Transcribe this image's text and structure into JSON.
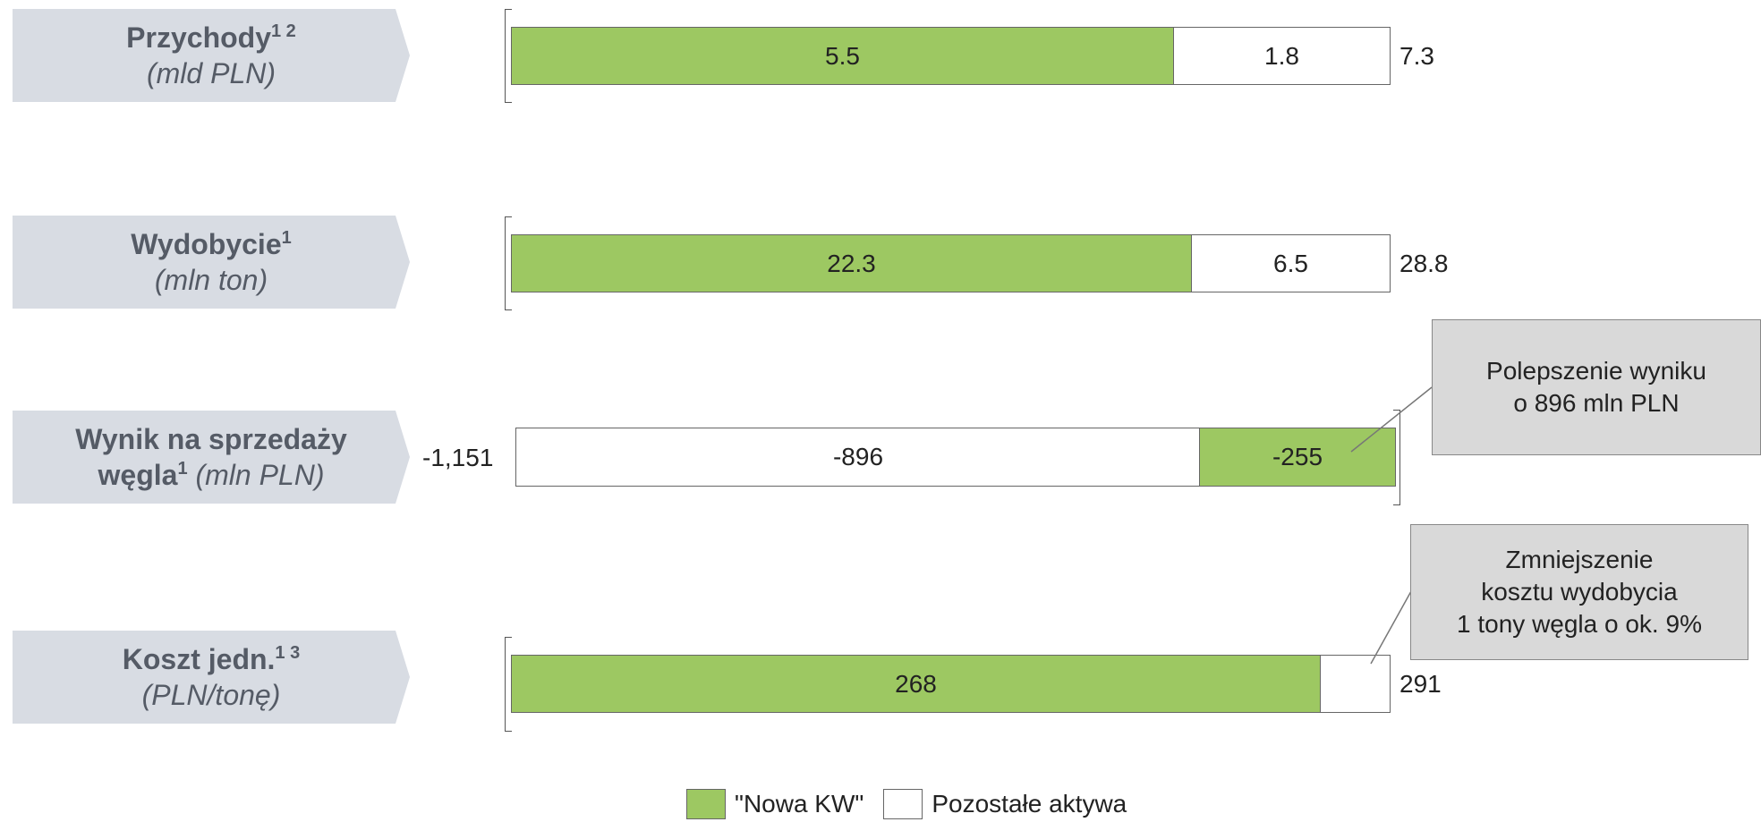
{
  "colors": {
    "nowa_kw": "#9dc862",
    "pozostale": "#ffffff",
    "label_bg": "#d8dce3",
    "callout_bg": "#d9d9d9"
  },
  "rows": [
    {
      "title": "Przychody",
      "sup": "1 2",
      "unit": "(mld PLN)"
    },
    {
      "title": "Wydobycie",
      "sup": "1",
      "unit": "(mln ton)"
    },
    {
      "title_line1": "Wynik na sprzedaży",
      "title_line2_bold": "węgla",
      "sup": "1",
      "unit": "(mln PLN)"
    },
    {
      "title": "Koszt jedn.",
      "sup": "1 3",
      "unit": "(PLN/tonę)"
    }
  ],
  "chart_data": {
    "type": "bar",
    "orientation": "horizontal",
    "stacked": true,
    "categories": [
      "Przychody (mld PLN)",
      "Wydobycie (mln ton)",
      "Wynik na sprzedaży węgla (mln PLN)",
      "Koszt jedn. (PLN/tonę)"
    ],
    "series": [
      {
        "name": "\"Nowa KW\"",
        "values": [
          5.5,
          22.3,
          -255,
          268
        ],
        "labels": [
          "5.5",
          "22.3",
          "-255",
          "268"
        ]
      },
      {
        "name": "Pozostałe aktywa",
        "values": [
          1.8,
          6.5,
          -896,
          23
        ],
        "labels": [
          "1.8",
          "6.5",
          "-896",
          ""
        ]
      }
    ],
    "totals": [
      "7.3",
      "28.8",
      "-1,151",
      "291"
    ],
    "legend": {
      "position": "bottom",
      "items": [
        "\"Nowa KW\"",
        "Pozostałe aktywa"
      ]
    }
  },
  "callouts": [
    {
      "text": "Polepszenie wyniku\no 896 mln PLN"
    },
    {
      "text": "Zmniejszenie\nkosztu wydobycia\n1 tony węgla o ok. 9%"
    }
  ]
}
